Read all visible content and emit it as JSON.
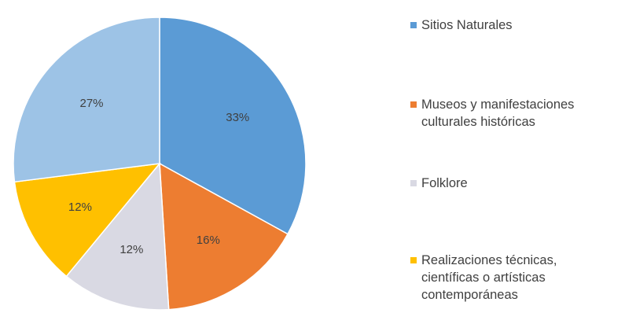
{
  "chart_data": {
    "type": "pie",
    "title": "",
    "slices": [
      {
        "label": "Sitios Naturales",
        "value": 33,
        "display": "33%",
        "color": "#5b9bd5"
      },
      {
        "label": "Museos y manifestaciones\nculturales históricas",
        "value": 16,
        "display": "16%",
        "color": "#ed7d31"
      },
      {
        "label": "Folklore",
        "value": 12,
        "display": "12%",
        "color": "#d9d9e3"
      },
      {
        "label": "Realizaciones técnicas,\ncientíficas o artísticas\ncontemporáneas",
        "value": 12,
        "display": "12%",
        "color": "#ffc000"
      },
      {
        "label": "",
        "value": 27,
        "display": "27%",
        "color": "#9dc3e6"
      }
    ],
    "legend_position": "right"
  }
}
